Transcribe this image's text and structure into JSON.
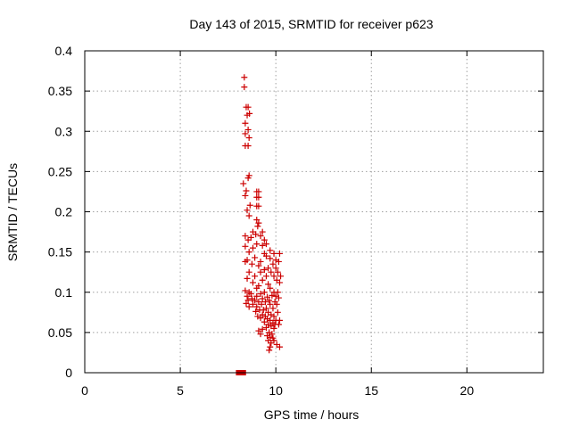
{
  "chart_data": {
    "type": "scatter",
    "title": "Day 143 of 2015, SRMTID for receiver p623",
    "xlabel": "GPS time / hours",
    "ylabel": "SRMTID / TECUs",
    "xlim": [
      0,
      24
    ],
    "ylim": [
      0,
      0.4
    ],
    "xticks": [
      0,
      5,
      10,
      15,
      20
    ],
    "xtick_labels": [
      "0",
      "5",
      "10",
      "15",
      "20"
    ],
    "yticks": [
      0,
      0.05,
      0.1,
      0.15,
      0.2,
      0.25,
      0.3,
      0.35,
      0.4
    ],
    "ytick_labels": [
      "0",
      "0.05",
      "0.1",
      "0.15",
      "0.2",
      "0.25",
      "0.3",
      "0.35",
      "0.4"
    ],
    "grid": true,
    "legend": "none",
    "marker_color": "#cc0000",
    "series": [
      {
        "name": "SRMTID plus markers",
        "marker": "plus",
        "points": [
          [
            8.35,
            0.367
          ],
          [
            8.35,
            0.355
          ],
          [
            8.45,
            0.33
          ],
          [
            8.55,
            0.33
          ],
          [
            8.5,
            0.32
          ],
          [
            8.62,
            0.322
          ],
          [
            8.4,
            0.31
          ],
          [
            8.55,
            0.302
          ],
          [
            8.4,
            0.297
          ],
          [
            8.6,
            0.292
          ],
          [
            8.4,
            0.282
          ],
          [
            8.55,
            0.282
          ],
          [
            8.6,
            0.245
          ],
          [
            8.55,
            0.242
          ],
          [
            8.3,
            0.235
          ],
          [
            8.45,
            0.226
          ],
          [
            8.4,
            0.22
          ],
          [
            9.0,
            0.225
          ],
          [
            9.1,
            0.225
          ],
          [
            9.0,
            0.218
          ],
          [
            9.1,
            0.218
          ],
          [
            8.65,
            0.208
          ],
          [
            8.5,
            0.202
          ],
          [
            9.0,
            0.207
          ],
          [
            9.1,
            0.207
          ],
          [
            8.6,
            0.195
          ],
          [
            9.0,
            0.19
          ],
          [
            9.1,
            0.186
          ],
          [
            9.05,
            0.182
          ],
          [
            8.8,
            0.175
          ],
          [
            9.3,
            0.175
          ],
          [
            8.95,
            0.172
          ],
          [
            8.4,
            0.17
          ],
          [
            8.7,
            0.168
          ],
          [
            9.2,
            0.17
          ],
          [
            8.55,
            0.165
          ],
          [
            9.4,
            0.165
          ],
          [
            9.0,
            0.16
          ],
          [
            8.4,
            0.157
          ],
          [
            8.8,
            0.155
          ],
          [
            9.3,
            0.158
          ],
          [
            9.5,
            0.16
          ],
          [
            8.6,
            0.15
          ],
          [
            9.7,
            0.152
          ],
          [
            9.4,
            0.148
          ],
          [
            9.9,
            0.148
          ],
          [
            10.2,
            0.148
          ],
          [
            9.5,
            0.145
          ],
          [
            8.9,
            0.143
          ],
          [
            8.5,
            0.14
          ],
          [
            9.7,
            0.142
          ],
          [
            10.0,
            0.14
          ],
          [
            10.15,
            0.138
          ],
          [
            9.2,
            0.138
          ],
          [
            8.4,
            0.138
          ],
          [
            8.75,
            0.135
          ],
          [
            9.1,
            0.133
          ],
          [
            9.85,
            0.135
          ],
          [
            9.6,
            0.13
          ],
          [
            9.4,
            0.128
          ],
          [
            10.0,
            0.13
          ],
          [
            8.6,
            0.125
          ],
          [
            9.2,
            0.125
          ],
          [
            9.75,
            0.125
          ],
          [
            10.1,
            0.125
          ],
          [
            8.9,
            0.12
          ],
          [
            9.5,
            0.12
          ],
          [
            9.9,
            0.12
          ],
          [
            10.25,
            0.12
          ],
          [
            8.5,
            0.117
          ],
          [
            9.3,
            0.115
          ],
          [
            10.05,
            0.115
          ],
          [
            10.2,
            0.112
          ],
          [
            8.8,
            0.112
          ],
          [
            9.6,
            0.11
          ],
          [
            9.1,
            0.108
          ],
          [
            9.0,
            0.105
          ],
          [
            9.7,
            0.105
          ],
          [
            8.4,
            0.102
          ],
          [
            8.6,
            0.1
          ],
          [
            9.4,
            0.1
          ],
          [
            9.9,
            0.1
          ],
          [
            10.1,
            0.1
          ],
          [
            8.7,
            0.098
          ],
          [
            9.2,
            0.098
          ],
          [
            9.8,
            0.096
          ],
          [
            8.5,
            0.095
          ],
          [
            9.0,
            0.095
          ],
          [
            9.55,
            0.094
          ],
          [
            10.0,
            0.095
          ],
          [
            10.15,
            0.093
          ],
          [
            8.75,
            0.092
          ],
          [
            9.3,
            0.092
          ],
          [
            9.65,
            0.09
          ],
          [
            8.55,
            0.09
          ],
          [
            8.9,
            0.09
          ],
          [
            9.1,
            0.088
          ],
          [
            9.45,
            0.088
          ],
          [
            9.95,
            0.088
          ],
          [
            8.45,
            0.086
          ],
          [
            8.8,
            0.085
          ],
          [
            9.25,
            0.085
          ],
          [
            9.7,
            0.085
          ],
          [
            10.05,
            0.085
          ],
          [
            8.6,
            0.082
          ],
          [
            9.0,
            0.082
          ],
          [
            9.5,
            0.08
          ],
          [
            9.85,
            0.08
          ],
          [
            9.15,
            0.078
          ],
          [
            9.35,
            0.078
          ],
          [
            8.95,
            0.076
          ],
          [
            9.6,
            0.075
          ],
          [
            10.1,
            0.075
          ],
          [
            9.3,
            0.072
          ],
          [
            9.75,
            0.072
          ],
          [
            9.05,
            0.07
          ],
          [
            9.45,
            0.07
          ],
          [
            9.9,
            0.07
          ],
          [
            9.2,
            0.068
          ],
          [
            9.55,
            0.067
          ],
          [
            9.7,
            0.065
          ],
          [
            10.0,
            0.065
          ],
          [
            10.2,
            0.065
          ],
          [
            9.4,
            0.063
          ],
          [
            9.85,
            0.062
          ],
          [
            9.6,
            0.06
          ],
          [
            9.95,
            0.06
          ],
          [
            10.15,
            0.06
          ],
          [
            9.75,
            0.058
          ],
          [
            9.5,
            0.056
          ],
          [
            9.9,
            0.055
          ],
          [
            9.3,
            0.054
          ],
          [
            9.1,
            0.052
          ],
          [
            9.65,
            0.05
          ],
          [
            9.8,
            0.048
          ],
          [
            9.2,
            0.048
          ],
          [
            9.55,
            0.046
          ],
          [
            9.7,
            0.044
          ],
          [
            9.85,
            0.043
          ],
          [
            9.6,
            0.04
          ],
          [
            9.9,
            0.04
          ],
          [
            9.75,
            0.037
          ],
          [
            10.05,
            0.035
          ],
          [
            9.7,
            0.032
          ],
          [
            10.2,
            0.032
          ],
          [
            9.65,
            0.028
          ]
        ]
      },
      {
        "name": "SRMTID zero markers",
        "marker": "square",
        "points": [
          [
            8.05,
            0
          ],
          [
            8.2,
            0
          ],
          [
            8.3,
            0
          ]
        ]
      }
    ]
  }
}
